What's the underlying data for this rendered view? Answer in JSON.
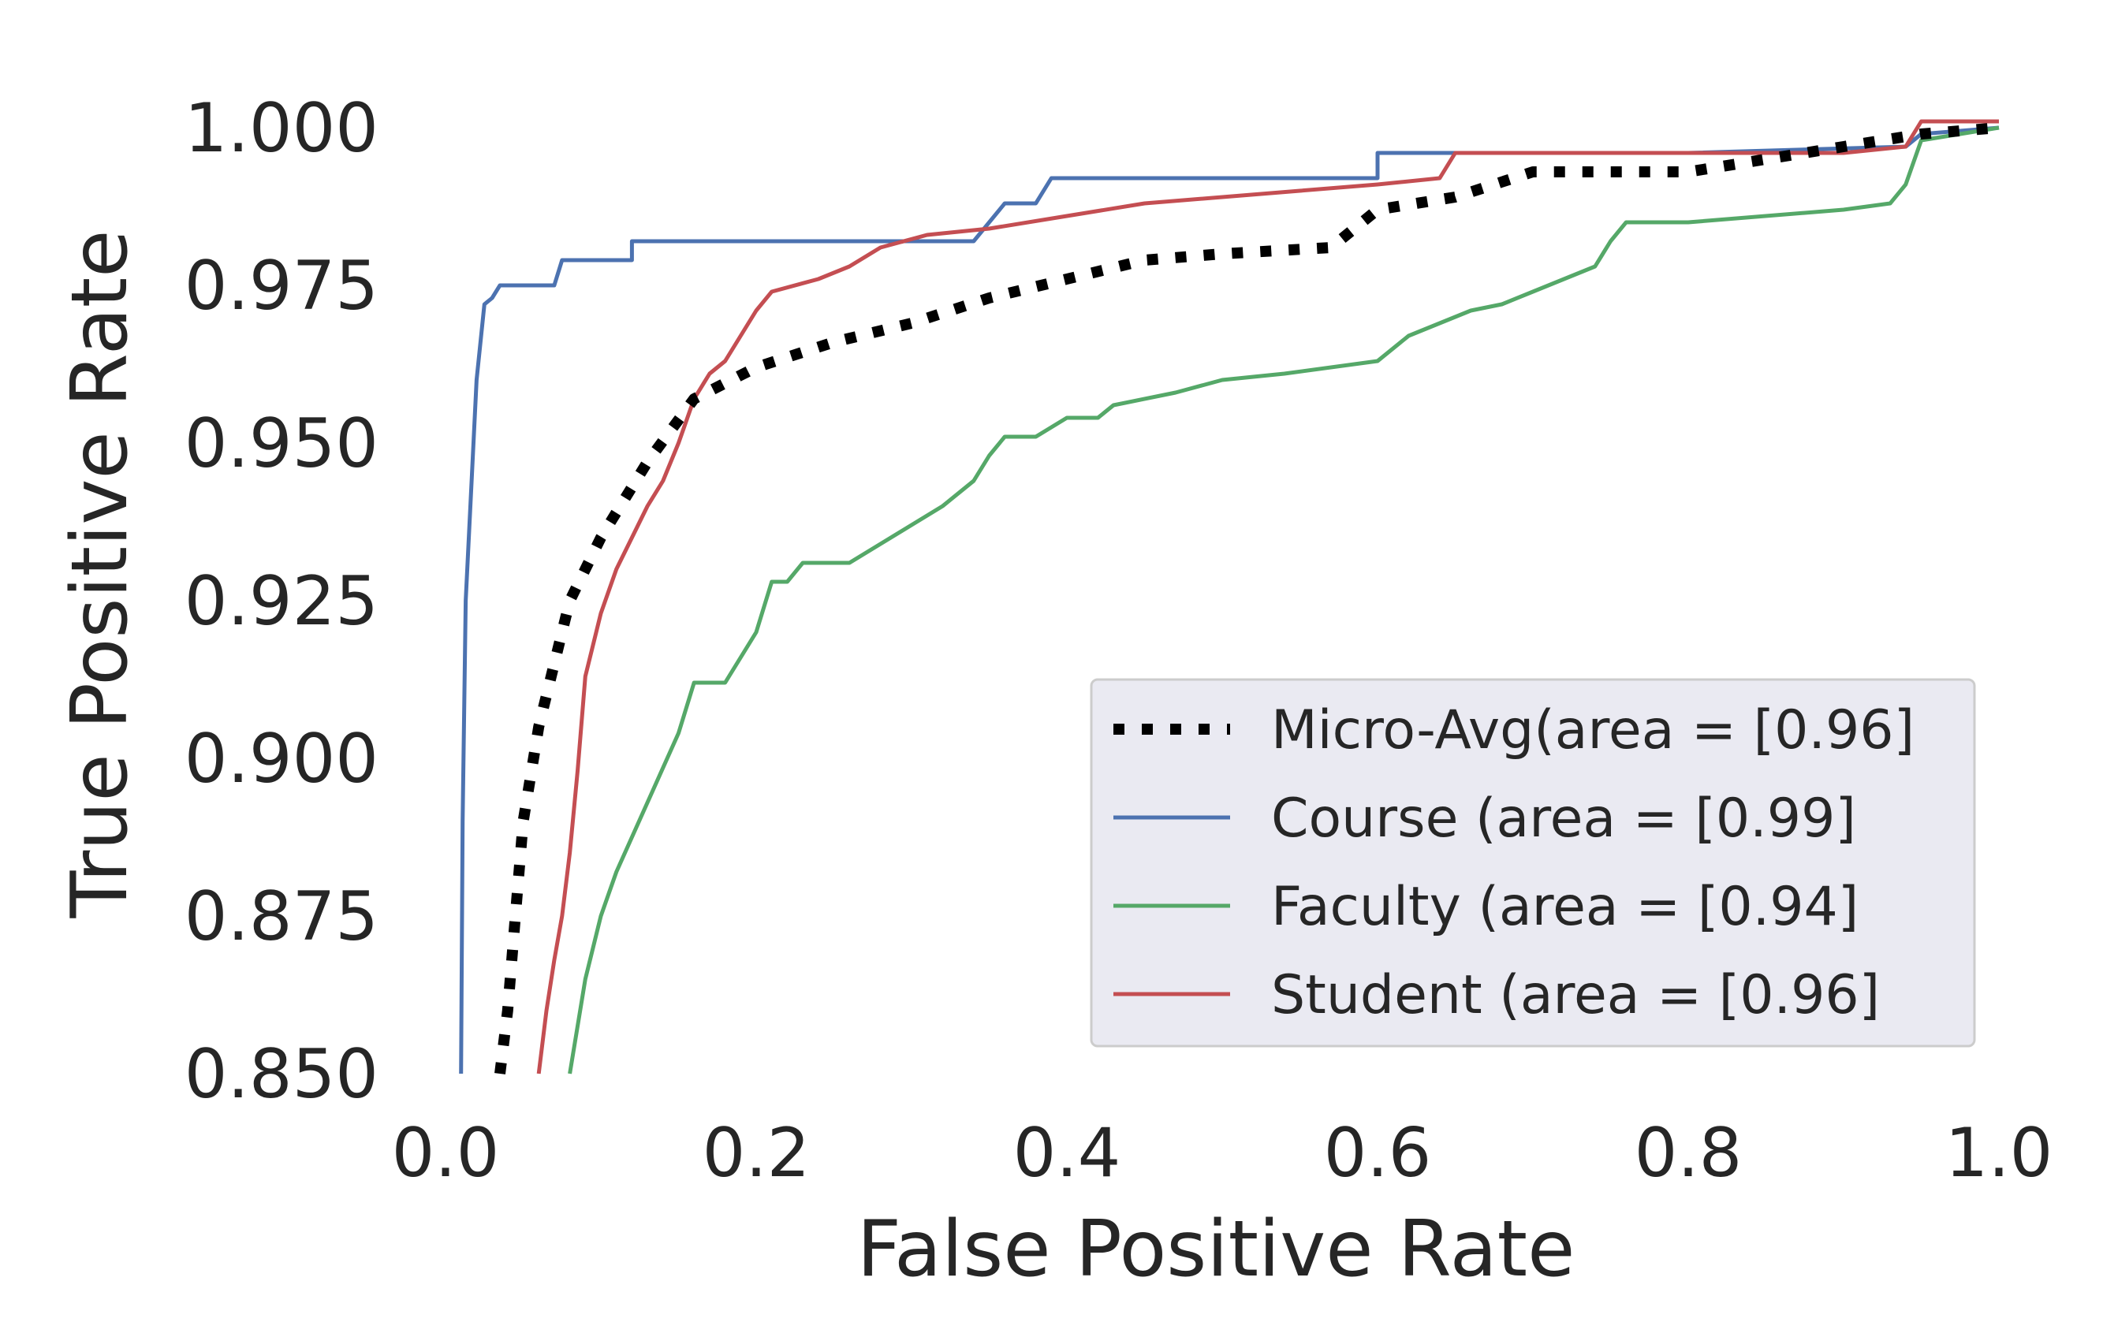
{
  "chart_data": {
    "type": "line",
    "title": "",
    "xlabel": "False Positive Rate",
    "ylabel": "True Positive Rate",
    "xlim": [
      0.0,
      1.0
    ],
    "ylim": [
      0.85,
      1.0
    ],
    "grid": false,
    "legend_position": "lower-right",
    "x_ticks": [
      0.0,
      0.2,
      0.4,
      0.6,
      0.8,
      1.0
    ],
    "x_tick_labels": [
      "0.0",
      "0.2",
      "0.4",
      "0.6",
      "0.8",
      "1.0"
    ],
    "y_ticks": [
      0.85,
      0.875,
      0.9,
      0.925,
      0.95,
      0.975,
      1.0
    ],
    "y_tick_labels": [
      "0.850",
      "0.875",
      "0.900",
      "0.925",
      "0.950",
      "0.975",
      "1.000"
    ],
    "series": [
      {
        "name": "Micro-Avg(area = [0.96]",
        "color": "#000000",
        "style": "dotted",
        "points": [
          [
            0.035,
            0.85
          ],
          [
            0.04,
            0.86
          ],
          [
            0.045,
            0.875
          ],
          [
            0.05,
            0.89
          ],
          [
            0.06,
            0.905
          ],
          [
            0.07,
            0.915
          ],
          [
            0.08,
            0.925
          ],
          [
            0.1,
            0.935
          ],
          [
            0.13,
            0.947
          ],
          [
            0.16,
            0.957
          ],
          [
            0.2,
            0.962
          ],
          [
            0.25,
            0.966
          ],
          [
            0.3,
            0.969
          ],
          [
            0.35,
            0.973
          ],
          [
            0.4,
            0.976
          ],
          [
            0.45,
            0.979
          ],
          [
            0.5,
            0.98
          ],
          [
            0.57,
            0.981
          ],
          [
            0.6,
            0.987
          ],
          [
            0.65,
            0.989
          ],
          [
            0.7,
            0.993
          ],
          [
            0.8,
            0.993
          ],
          [
            0.85,
            0.995
          ],
          [
            0.9,
            0.997
          ],
          [
            0.95,
            0.999
          ],
          [
            1.0,
            1.0
          ]
        ]
      },
      {
        "name": "Course (area = [0.99]",
        "color": "#4c72b0",
        "style": "solid",
        "points": [
          [
            0.01,
            0.85
          ],
          [
            0.011,
            0.89
          ],
          [
            0.013,
            0.925
          ],
          [
            0.017,
            0.945
          ],
          [
            0.02,
            0.96
          ],
          [
            0.025,
            0.972
          ],
          [
            0.03,
            0.973
          ],
          [
            0.035,
            0.975
          ],
          [
            0.07,
            0.975
          ],
          [
            0.075,
            0.979
          ],
          [
            0.12,
            0.979
          ],
          [
            0.12,
            0.982
          ],
          [
            0.34,
            0.982
          ],
          [
            0.35,
            0.985
          ],
          [
            0.36,
            0.988
          ],
          [
            0.38,
            0.988
          ],
          [
            0.39,
            0.992
          ],
          [
            0.6,
            0.992
          ],
          [
            0.6,
            0.996
          ],
          [
            0.8,
            0.996
          ],
          [
            0.94,
            0.997
          ],
          [
            0.95,
            0.999
          ],
          [
            1.0,
            1.0
          ]
        ]
      },
      {
        "name": "Faculty (area = [0.94]",
        "color": "#55a868",
        "style": "solid",
        "points": [
          [
            0.08,
            0.85
          ],
          [
            0.09,
            0.865
          ],
          [
            0.1,
            0.875
          ],
          [
            0.11,
            0.882
          ],
          [
            0.13,
            0.893
          ],
          [
            0.15,
            0.904
          ],
          [
            0.16,
            0.912
          ],
          [
            0.18,
            0.912
          ],
          [
            0.2,
            0.92
          ],
          [
            0.21,
            0.928
          ],
          [
            0.22,
            0.928
          ],
          [
            0.23,
            0.931
          ],
          [
            0.26,
            0.931
          ],
          [
            0.28,
            0.934
          ],
          [
            0.3,
            0.937
          ],
          [
            0.32,
            0.94
          ],
          [
            0.34,
            0.944
          ],
          [
            0.35,
            0.948
          ],
          [
            0.36,
            0.951
          ],
          [
            0.38,
            0.951
          ],
          [
            0.4,
            0.954
          ],
          [
            0.42,
            0.954
          ],
          [
            0.43,
            0.956
          ],
          [
            0.47,
            0.958
          ],
          [
            0.5,
            0.96
          ],
          [
            0.54,
            0.961
          ],
          [
            0.6,
            0.963
          ],
          [
            0.62,
            0.967
          ],
          [
            0.64,
            0.969
          ],
          [
            0.66,
            0.971
          ],
          [
            0.68,
            0.972
          ],
          [
            0.7,
            0.974
          ],
          [
            0.72,
            0.976
          ],
          [
            0.74,
            0.978
          ],
          [
            0.75,
            0.982
          ],
          [
            0.76,
            0.985
          ],
          [
            0.8,
            0.985
          ],
          [
            0.9,
            0.987
          ],
          [
            0.93,
            0.988
          ],
          [
            0.94,
            0.991
          ],
          [
            0.95,
            0.998
          ],
          [
            1.0,
            1.0
          ]
        ]
      },
      {
        "name": "Student (area = [0.96]",
        "color": "#c44e52",
        "style": "solid",
        "points": [
          [
            0.06,
            0.85
          ],
          [
            0.065,
            0.86
          ],
          [
            0.07,
            0.868
          ],
          [
            0.075,
            0.875
          ],
          [
            0.08,
            0.885
          ],
          [
            0.085,
            0.898
          ],
          [
            0.09,
            0.913
          ],
          [
            0.1,
            0.923
          ],
          [
            0.11,
            0.93
          ],
          [
            0.12,
            0.935
          ],
          [
            0.13,
            0.94
          ],
          [
            0.14,
            0.944
          ],
          [
            0.15,
            0.95
          ],
          [
            0.16,
            0.957
          ],
          [
            0.17,
            0.961
          ],
          [
            0.18,
            0.963
          ],
          [
            0.19,
            0.967
          ],
          [
            0.2,
            0.971
          ],
          [
            0.21,
            0.974
          ],
          [
            0.24,
            0.976
          ],
          [
            0.26,
            0.978
          ],
          [
            0.28,
            0.981
          ],
          [
            0.31,
            0.983
          ],
          [
            0.35,
            0.984
          ],
          [
            0.4,
            0.986
          ],
          [
            0.45,
            0.988
          ],
          [
            0.55,
            0.99
          ],
          [
            0.6,
            0.991
          ],
          [
            0.64,
            0.992
          ],
          [
            0.65,
            0.996
          ],
          [
            0.8,
            0.996
          ],
          [
            0.9,
            0.996
          ],
          [
            0.94,
            0.997
          ],
          [
            0.95,
            1.001
          ],
          [
            1.0,
            1.001
          ]
        ]
      }
    ]
  }
}
